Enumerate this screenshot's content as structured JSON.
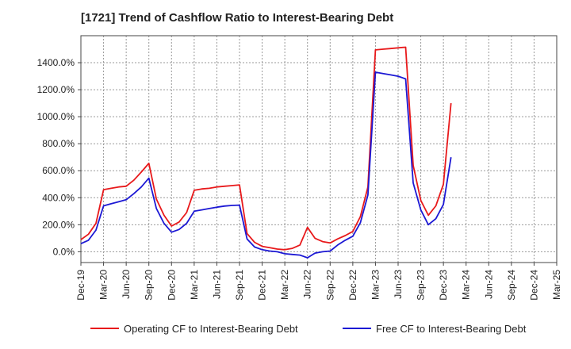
{
  "title": "[1721]  Trend of Cashflow Ratio to Interest-Bearing Debt",
  "chart_data": {
    "type": "line",
    "title": "[1721]  Trend of Cashflow Ratio to Interest-Bearing Debt",
    "xlabel": "",
    "ylabel": "",
    "ylim": [
      -80,
      1600
    ],
    "yticks": [
      0,
      200,
      400,
      600,
      800,
      1000,
      1200,
      1400
    ],
    "ytick_labels": [
      "0.0%",
      "200.0%",
      "400.0%",
      "600.0%",
      "800.0%",
      "1000.0%",
      "1200.0%",
      "1400.0%"
    ],
    "x_tick_labels": [
      "Dec-19",
      "Mar-20",
      "Jun-20",
      "Sep-20",
      "Dec-20",
      "Mar-21",
      "Jun-21",
      "Sep-21",
      "Dec-21",
      "Mar-22",
      "Jun-22",
      "Sep-22",
      "Dec-22",
      "Mar-23",
      "Jun-23",
      "Sep-23",
      "Dec-23",
      "Mar-24",
      "Jun-24",
      "Sep-24",
      "Dec-24",
      "Mar-25"
    ],
    "grid": true,
    "legend_position": "bottom",
    "series": [
      {
        "name": "Operating CF to Interest-Bearing Debt",
        "color": "#e8191b",
        "points": [
          [
            0,
            90
          ],
          [
            1,
            130
          ],
          [
            2,
            210
          ],
          [
            3,
            460
          ],
          [
            4,
            470
          ],
          [
            5,
            480
          ],
          [
            6,
            485
          ],
          [
            7,
            530
          ],
          [
            8,
            590
          ],
          [
            9,
            655
          ],
          [
            10,
            390
          ],
          [
            11,
            270
          ],
          [
            12,
            190
          ],
          [
            13,
            220
          ],
          [
            14,
            290
          ],
          [
            15,
            455
          ],
          [
            16,
            465
          ],
          [
            17,
            470
          ],
          [
            18,
            480
          ],
          [
            19,
            485
          ],
          [
            20,
            490
          ],
          [
            21,
            495
          ],
          [
            22,
            135
          ],
          [
            23,
            70
          ],
          [
            24,
            40
          ],
          [
            25,
            30
          ],
          [
            26,
            20
          ],
          [
            27,
            15
          ],
          [
            28,
            25
          ],
          [
            29,
            50
          ],
          [
            30,
            180
          ],
          [
            31,
            100
          ],
          [
            32,
            75
          ],
          [
            33,
            65
          ],
          [
            34,
            95
          ],
          [
            35,
            120
          ],
          [
            36,
            150
          ],
          [
            37,
            260
          ],
          [
            38,
            480
          ],
          [
            39,
            1495
          ],
          [
            40,
            1500
          ],
          [
            41,
            1505
          ],
          [
            42,
            1510
          ],
          [
            43,
            1515
          ],
          [
            44,
            640
          ],
          [
            45,
            380
          ],
          [
            46,
            270
          ],
          [
            47,
            340
          ],
          [
            48,
            500
          ],
          [
            49,
            1100
          ]
        ]
      },
      {
        "name": "Free CF to Interest-Bearing Debt",
        "color": "#1c18d4",
        "points": [
          [
            0,
            60
          ],
          [
            1,
            85
          ],
          [
            2,
            160
          ],
          [
            3,
            340
          ],
          [
            4,
            355
          ],
          [
            5,
            370
          ],
          [
            6,
            385
          ],
          [
            7,
            430
          ],
          [
            8,
            480
          ],
          [
            9,
            545
          ],
          [
            10,
            320
          ],
          [
            11,
            210
          ],
          [
            12,
            145
          ],
          [
            13,
            165
          ],
          [
            14,
            210
          ],
          [
            15,
            300
          ],
          [
            16,
            310
          ],
          [
            17,
            320
          ],
          [
            18,
            330
          ],
          [
            19,
            338
          ],
          [
            20,
            343
          ],
          [
            21,
            345
          ],
          [
            22,
            95
          ],
          [
            23,
            35
          ],
          [
            24,
            15
          ],
          [
            25,
            5
          ],
          [
            26,
            0
          ],
          [
            27,
            -15
          ],
          [
            28,
            -20
          ],
          [
            29,
            -25
          ],
          [
            30,
            -45
          ],
          [
            31,
            -10
          ],
          [
            32,
            0
          ],
          [
            33,
            5
          ],
          [
            34,
            50
          ],
          [
            35,
            85
          ],
          [
            36,
            115
          ],
          [
            37,
            215
          ],
          [
            38,
            420
          ],
          [
            39,
            1330
          ],
          [
            40,
            1320
          ],
          [
            41,
            1310
          ],
          [
            42,
            1300
          ],
          [
            43,
            1280
          ],
          [
            44,
            510
          ],
          [
            45,
            310
          ],
          [
            46,
            200
          ],
          [
            47,
            245
          ],
          [
            48,
            350
          ],
          [
            49,
            700
          ]
        ]
      }
    ]
  }
}
